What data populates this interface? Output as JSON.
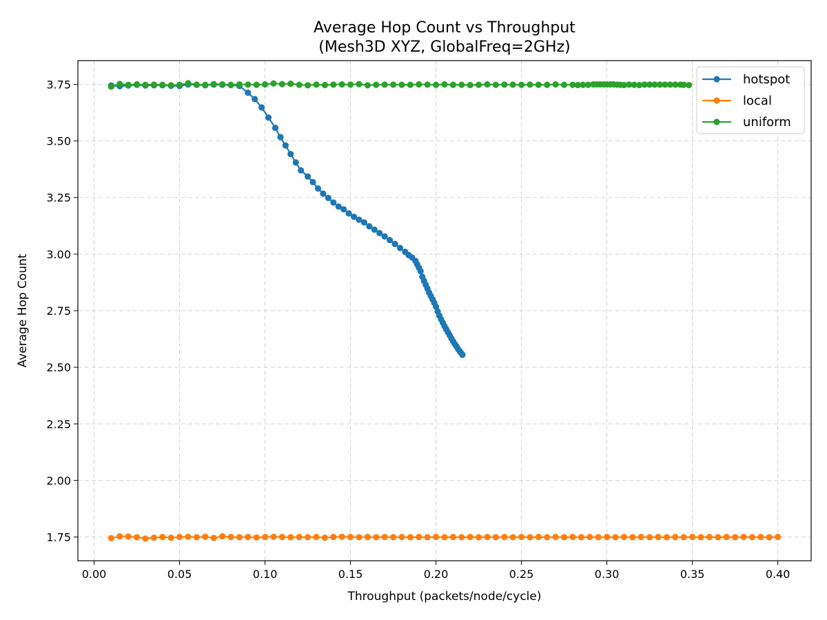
{
  "chart_data": {
    "type": "line",
    "title": "Average Hop Count vs Throughput",
    "subtitle": "(Mesh3D XYZ, GlobalFreq=2GHz)",
    "xlabel": "Throughput (packets/node/cycle)",
    "ylabel": "Average Hop Count",
    "xlim": [
      -0.0095,
      0.4195
    ],
    "ylim": [
      1.645,
      3.855
    ],
    "xticks": [
      "0.00",
      "0.05",
      "0.10",
      "0.15",
      "0.20",
      "0.25",
      "0.30",
      "0.35",
      "0.40"
    ],
    "yticks": [
      "1.75",
      "2.00",
      "2.25",
      "2.50",
      "2.75",
      "3.00",
      "3.25",
      "3.50",
      "3.75"
    ],
    "grid": true,
    "legend_position": "top-right",
    "series": [
      {
        "name": "hotspot",
        "color": "#1f77b4",
        "x": [
          0.01,
          0.015,
          0.02,
          0.025,
          0.03,
          0.035,
          0.04,
          0.045,
          0.05,
          0.055,
          0.06,
          0.065,
          0.07,
          0.075,
          0.08,
          0.085,
          0.09,
          0.094,
          0.098,
          0.102,
          0.106,
          0.109,
          0.112,
          0.115,
          0.118,
          0.121,
          0.125,
          0.128,
          0.131,
          0.134,
          0.137,
          0.14,
          0.143,
          0.146,
          0.149,
          0.152,
          0.155,
          0.158,
          0.161,
          0.164,
          0.167,
          0.17,
          0.173,
          0.176,
          0.179,
          0.182,
          0.184,
          0.186,
          0.188,
          0.189,
          0.19,
          0.191,
          0.192,
          0.193,
          0.194,
          0.195,
          0.196,
          0.197,
          0.198,
          0.199,
          0.2,
          0.201,
          0.202,
          0.203,
          0.204,
          0.205,
          0.206,
          0.207,
          0.208,
          0.209,
          0.21,
          0.211,
          0.212,
          0.213,
          0.214,
          0.215,
          0.2155
        ],
        "y": [
          3.745,
          3.742,
          3.745,
          3.748,
          3.745,
          3.746,
          3.746,
          3.744,
          3.743,
          3.75,
          3.748,
          3.746,
          3.749,
          3.748,
          3.747,
          3.743,
          3.713,
          3.685,
          3.648,
          3.603,
          3.558,
          3.517,
          3.48,
          3.442,
          3.405,
          3.37,
          3.343,
          3.318,
          3.29,
          3.267,
          3.248,
          3.228,
          3.21,
          3.198,
          3.18,
          3.165,
          3.152,
          3.14,
          3.123,
          3.108,
          3.093,
          3.078,
          3.062,
          3.045,
          3.027,
          3.01,
          2.996,
          2.985,
          2.97,
          2.955,
          2.94,
          2.925,
          2.9,
          2.882,
          2.865,
          2.848,
          2.83,
          2.815,
          2.8,
          2.785,
          2.768,
          2.747,
          2.728,
          2.712,
          2.697,
          2.682,
          2.668,
          2.655,
          2.642,
          2.628,
          2.615,
          2.603,
          2.592,
          2.58,
          2.57,
          2.56,
          2.555
        ]
      },
      {
        "name": "local",
        "color": "#ff7f0e",
        "x": [
          0.01,
          0.015,
          0.02,
          0.025,
          0.03,
          0.035,
          0.04,
          0.045,
          0.05,
          0.055,
          0.06,
          0.065,
          0.07,
          0.075,
          0.08,
          0.085,
          0.09,
          0.095,
          0.1,
          0.105,
          0.11,
          0.115,
          0.12,
          0.125,
          0.13,
          0.135,
          0.14,
          0.145,
          0.15,
          0.155,
          0.16,
          0.165,
          0.17,
          0.175,
          0.18,
          0.185,
          0.19,
          0.195,
          0.2,
          0.205,
          0.21,
          0.215,
          0.22,
          0.225,
          0.23,
          0.235,
          0.24,
          0.245,
          0.25,
          0.255,
          0.26,
          0.265,
          0.27,
          0.275,
          0.28,
          0.285,
          0.29,
          0.295,
          0.3,
          0.305,
          0.31,
          0.315,
          0.32,
          0.325,
          0.33,
          0.335,
          0.34,
          0.345,
          0.35,
          0.355,
          0.36,
          0.365,
          0.37,
          0.375,
          0.38,
          0.385,
          0.39,
          0.395,
          0.4
        ],
        "y": [
          1.745,
          1.753,
          1.752,
          1.749,
          1.743,
          1.747,
          1.75,
          1.747,
          1.75,
          1.751,
          1.749,
          1.751,
          1.746,
          1.753,
          1.75,
          1.749,
          1.75,
          1.748,
          1.75,
          1.751,
          1.75,
          1.749,
          1.75,
          1.749,
          1.75,
          1.747,
          1.75,
          1.751,
          1.75,
          1.749,
          1.75,
          1.749,
          1.75,
          1.749,
          1.75,
          1.749,
          1.75,
          1.749,
          1.75,
          1.749,
          1.75,
          1.749,
          1.75,
          1.749,
          1.75,
          1.749,
          1.75,
          1.749,
          1.75,
          1.749,
          1.75,
          1.749,
          1.75,
          1.749,
          1.75,
          1.749,
          1.75,
          1.749,
          1.75,
          1.749,
          1.75,
          1.749,
          1.75,
          1.749,
          1.75,
          1.749,
          1.75,
          1.749,
          1.75,
          1.749,
          1.75,
          1.749,
          1.75,
          1.749,
          1.75,
          1.749,
          1.75,
          1.749,
          1.75
        ]
      },
      {
        "name": "uniform",
        "color": "#2ca02c",
        "x": [
          0.01,
          0.015,
          0.02,
          0.025,
          0.03,
          0.035,
          0.04,
          0.045,
          0.05,
          0.055,
          0.06,
          0.065,
          0.07,
          0.075,
          0.08,
          0.085,
          0.09,
          0.095,
          0.1,
          0.105,
          0.11,
          0.115,
          0.12,
          0.125,
          0.13,
          0.135,
          0.14,
          0.145,
          0.15,
          0.155,
          0.16,
          0.165,
          0.17,
          0.175,
          0.18,
          0.185,
          0.19,
          0.195,
          0.2,
          0.205,
          0.21,
          0.215,
          0.22,
          0.225,
          0.23,
          0.235,
          0.24,
          0.245,
          0.25,
          0.255,
          0.26,
          0.265,
          0.27,
          0.275,
          0.28,
          0.283,
          0.286,
          0.289,
          0.292,
          0.294,
          0.296,
          0.298,
          0.3,
          0.302,
          0.304,
          0.306,
          0.308,
          0.31,
          0.313,
          0.316,
          0.319,
          0.322,
          0.325,
          0.328,
          0.331,
          0.334,
          0.337,
          0.34,
          0.343,
          0.345,
          0.348
        ],
        "y": [
          3.74,
          3.752,
          3.748,
          3.75,
          3.748,
          3.749,
          3.748,
          3.746,
          3.748,
          3.755,
          3.749,
          3.748,
          3.751,
          3.75,
          3.748,
          3.75,
          3.749,
          3.748,
          3.75,
          3.754,
          3.751,
          3.753,
          3.748,
          3.746,
          3.749,
          3.747,
          3.749,
          3.75,
          3.749,
          3.751,
          3.746,
          3.748,
          3.749,
          3.749,
          3.748,
          3.748,
          3.75,
          3.749,
          3.748,
          3.75,
          3.748,
          3.748,
          3.747,
          3.748,
          3.75,
          3.748,
          3.749,
          3.749,
          3.748,
          3.749,
          3.748,
          3.748,
          3.75,
          3.748,
          3.748,
          3.747,
          3.748,
          3.748,
          3.75,
          3.75,
          3.75,
          3.75,
          3.75,
          3.75,
          3.75,
          3.749,
          3.748,
          3.747,
          3.749,
          3.748,
          3.747,
          3.749,
          3.749,
          3.749,
          3.749,
          3.749,
          3.749,
          3.749,
          3.749,
          3.748,
          3.747
        ]
      }
    ]
  }
}
